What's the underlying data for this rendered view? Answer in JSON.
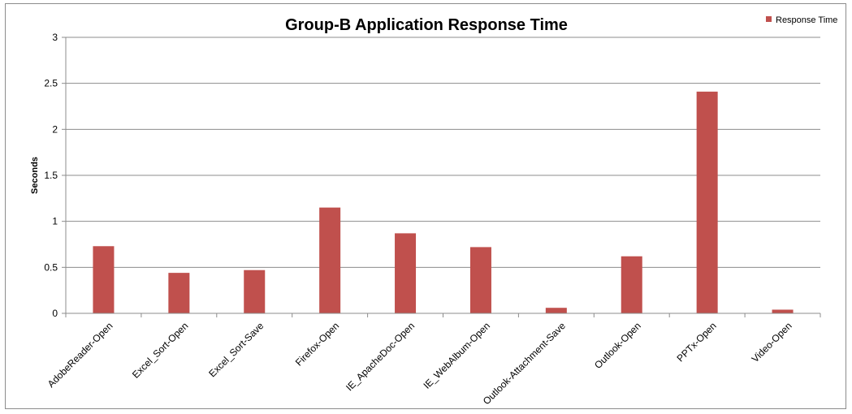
{
  "chart_data": {
    "type": "bar",
    "title": "Group-B Application Response Time",
    "xlabel": "",
    "ylabel": "Seconds",
    "ylim": [
      0,
      3
    ],
    "yticks": [
      "0",
      "0.5",
      "1",
      "1.5",
      "2",
      "2.5",
      "3"
    ],
    "categories": [
      "AdobeReader-Open",
      "Excel_Sort-Open",
      "Excel_Sort-Save",
      "Firefox-Open",
      "IE_ApacheDoc-Open",
      "IE_WebAlbum-Open",
      "Outlook-Attachment-Save",
      "Outlook-Open",
      "PPTx-Open",
      "Video-Open"
    ],
    "series": [
      {
        "name": "Response Time",
        "color": "#c0504d",
        "values": [
          0.73,
          0.44,
          0.47,
          1.15,
          0.87,
          0.72,
          0.06,
          0.62,
          2.41,
          0.04
        ]
      }
    ],
    "grid": true,
    "legend": "top-right"
  }
}
